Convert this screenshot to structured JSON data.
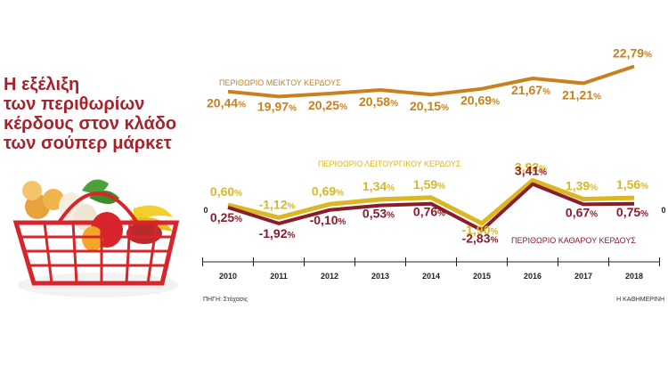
{
  "headline": [
    "Η εξέλιξη",
    "των περιθωρίων",
    "κέρδους στον κλάδο",
    "των σούπερ μάρκετ"
  ],
  "source": "ΠΗΓΗ: Στόχασις",
  "credit": "Η ΚΑΘΗΜΕΡΙΝΗ",
  "colors": {
    "gross": "#c8811e",
    "operating": "#d9b823",
    "net": "#8b1c2c",
    "headline": "#a8222d"
  },
  "chart_data": {
    "type": "line",
    "categories": [
      "2010",
      "2011",
      "2012",
      "2013",
      "2014",
      "2015",
      "2016",
      "2017",
      "2018"
    ],
    "zero_label": "0",
    "series": [
      {
        "key": "gross",
        "name": "ΠΕΡΙΘΩΡΙΟ ΜΕΙΚΤΟΥ ΚΕΡΔΟΥΣ",
        "values": [
          20.44,
          19.97,
          20.25,
          20.58,
          20.15,
          20.69,
          21.67,
          21.21,
          22.79
        ],
        "labels": [
          "20,44",
          "19,97",
          "20,25",
          "20,58",
          "20,15",
          "20,69",
          "21,67",
          "21,21",
          "22,79"
        ]
      },
      {
        "key": "operating",
        "name": "ΠΕΡΙΘΩΡΙΟ ΛΕΙΤΟΥΡΓΙΚΟΥ ΚΕΡΔΟΥΣ",
        "values": [
          0.6,
          -1.12,
          0.69,
          1.34,
          1.59,
          -1.9,
          3.92,
          1.39,
          1.56
        ],
        "labels": [
          "0,60",
          "-1,12",
          "0,69",
          "1,34",
          "1,59",
          "-1,90",
          "3,92",
          "1,39",
          "1,56"
        ]
      },
      {
        "key": "net",
        "name": "ΠΕΡΙΘΩΡΙΟ ΚΑΘΑΡΟΥ ΚΕΡΔΟΥΣ",
        "values": [
          0.25,
          -1.92,
          -0.1,
          0.53,
          0.76,
          -2.83,
          3.41,
          0.67,
          0.75
        ],
        "labels": [
          "0,25",
          "-1,92",
          "-0,10",
          "0,53",
          "0,76",
          "-2,83",
          "3,41",
          "0,67",
          "0,75"
        ]
      }
    ],
    "unit": "%"
  }
}
